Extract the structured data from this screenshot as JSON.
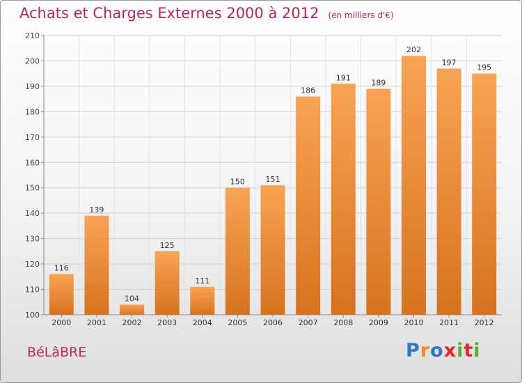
{
  "header": {
    "title": "Achats et Charges Externes 2000 à 2012",
    "subtitle": "(en milliers d'€)"
  },
  "commune": "BéLâBRE",
  "brand": {
    "letters": [
      "P",
      "r",
      "o",
      "x",
      "i",
      "t",
      "i"
    ]
  },
  "chart_data": {
    "type": "bar",
    "title": "Achats et Charges Externes 2000 à 2012",
    "subtitle": "(en milliers d'€)",
    "xlabel": "",
    "ylabel": "",
    "categories": [
      "2000",
      "2001",
      "2002",
      "2003",
      "2004",
      "2005",
      "2006",
      "2007",
      "2008",
      "2009",
      "2010",
      "2011",
      "2012"
    ],
    "values": [
      116,
      139,
      104,
      125,
      111,
      150,
      151,
      186,
      191,
      189,
      202,
      197,
      195
    ],
    "ylim": [
      100,
      210
    ],
    "yticks": [
      100,
      110,
      120,
      130,
      140,
      150,
      160,
      170,
      180,
      190,
      200,
      210
    ],
    "grid": true,
    "bar_color": "#f0943a",
    "legend": "none"
  }
}
